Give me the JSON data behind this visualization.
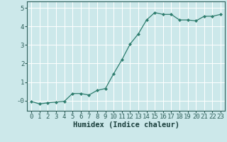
{
  "x": [
    0,
    1,
    2,
    3,
    4,
    5,
    6,
    7,
    8,
    9,
    10,
    11,
    12,
    13,
    14,
    15,
    16,
    17,
    18,
    19,
    20,
    21,
    22,
    23
  ],
  "y": [
    -0.05,
    -0.18,
    -0.12,
    -0.08,
    -0.04,
    0.38,
    0.38,
    0.3,
    0.55,
    0.65,
    1.45,
    2.2,
    3.05,
    3.6,
    4.35,
    4.75,
    4.65,
    4.65,
    4.35,
    4.35,
    4.3,
    4.55,
    4.55,
    4.65
  ],
  "xlabel": "Humidex (Indice chaleur)",
  "xlim": [
    -0.5,
    23.5
  ],
  "ylim": [
    -0.55,
    5.35
  ],
  "yticks": [
    0,
    1,
    2,
    3,
    4,
    5
  ],
  "ytick_labels": [
    "-0",
    "1",
    "2",
    "3",
    "4",
    "5"
  ],
  "xticks": [
    0,
    1,
    2,
    3,
    4,
    5,
    6,
    7,
    8,
    9,
    10,
    11,
    12,
    13,
    14,
    15,
    16,
    17,
    18,
    19,
    20,
    21,
    22,
    23
  ],
  "line_color": "#2e7d6e",
  "marker_color": "#2e7d6e",
  "bg_color": "#cce8ea",
  "grid_color": "#ffffff",
  "tick_color": "#2e5f5a",
  "label_color": "#1a3f3c",
  "tick_fontsize": 6.5,
  "xlabel_fontsize": 7.5
}
